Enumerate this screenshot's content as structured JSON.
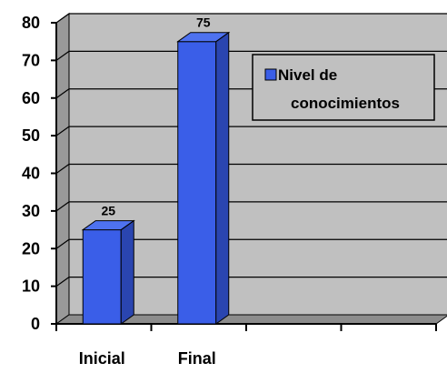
{
  "chart_data": {
    "type": "bar",
    "categories": [
      "Inicial",
      "Final"
    ],
    "series": [
      {
        "name": "Nivel de conocimientos",
        "values": [
          25,
          75
        ]
      }
    ],
    "ylim": [
      0,
      80
    ],
    "yticks": [
      0,
      10,
      20,
      30,
      40,
      50,
      60,
      70,
      80
    ],
    "grid": true,
    "legend": "top-right",
    "legend_lines": [
      "Nivel de",
      "conocimientos"
    ],
    "title": "",
    "xlabel": "",
    "ylabel": "",
    "colors": {
      "plot_bg": "#c0c0c0",
      "wall_side": "#999999",
      "floor": "#8c8c8c",
      "bar_front": "#3a5ee8",
      "bar_side": "#2a45b0",
      "bar_top": "#4e72f0",
      "legend_bg": "#c0c0c0"
    }
  }
}
